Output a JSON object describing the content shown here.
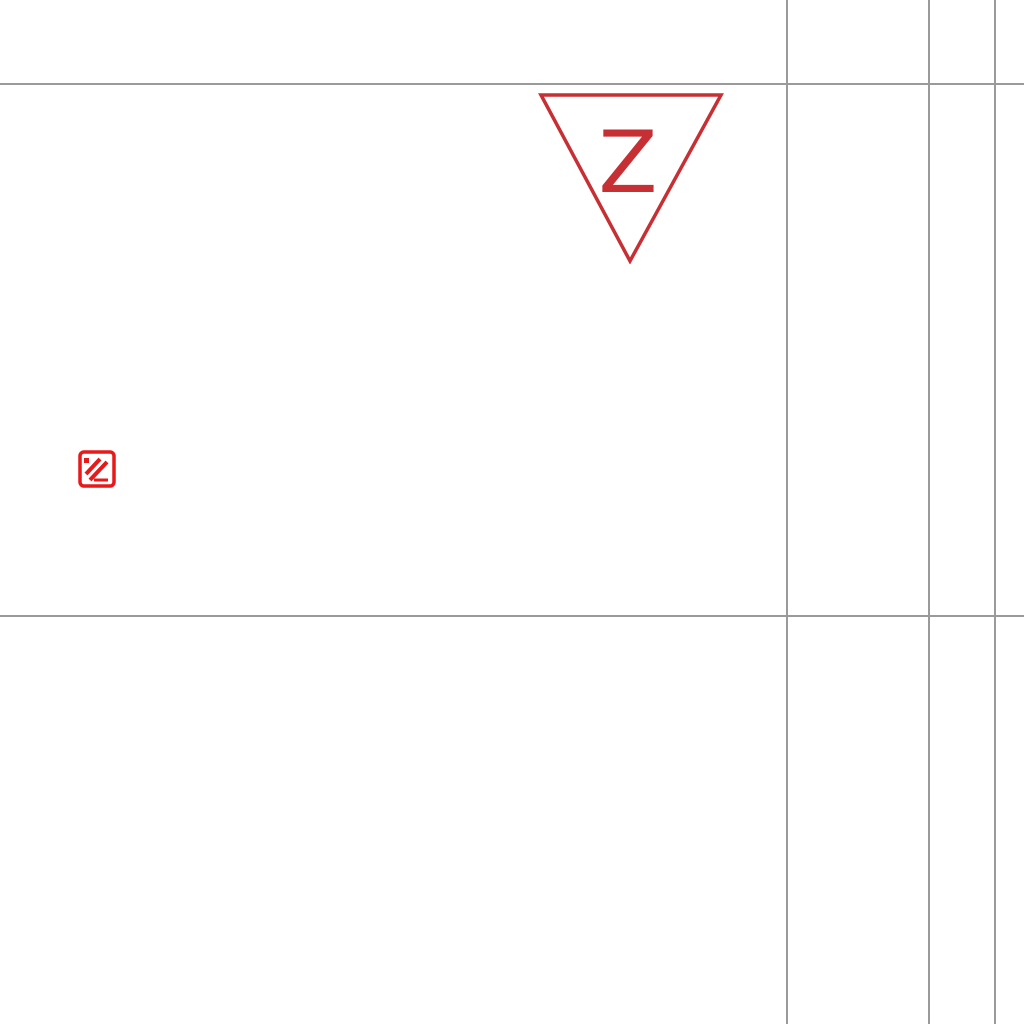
{
  "canvas": {
    "background_color": "#ffffff",
    "grid_line_color": "#9a9a9a"
  },
  "marker": {
    "label": "Z",
    "shape": "inverted-triangle",
    "color": "#c62f33"
  },
  "edit_icon": {
    "icon_name": "edit-icon",
    "color": "#e81919"
  }
}
